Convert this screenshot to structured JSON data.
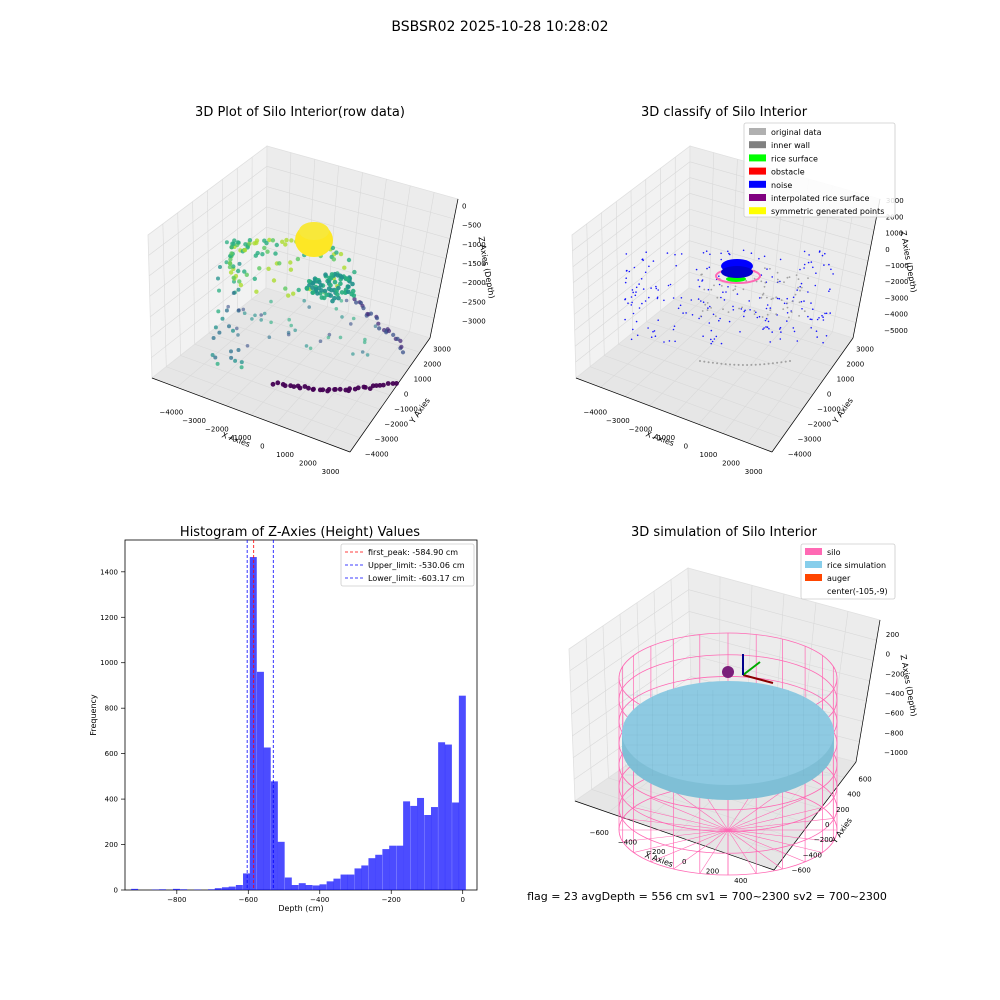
{
  "figure": {
    "suptitle": "BSBSR02 2025-10-28 10:28:02",
    "footer": "flag = 23  avgDepth = 556 cm  sv1 = 700~2300  sv2 = 700~2300"
  },
  "chart_data": [
    {
      "type": "scatter",
      "projection": "3d",
      "title": "3D Plot of Silo Interior(row data)",
      "xlabel": "X Axies",
      "ylabel": "Y Axies",
      "zlabel": "Z Axies (Depth)",
      "x_ticks": [
        "−4000",
        "−3000",
        "−2000",
        "−1000",
        "0",
        "1000",
        "2000",
        "3000"
      ],
      "y_ticks": [
        "−4000",
        "−3000",
        "−2000",
        "−1000",
        "0",
        "1000",
        "2000",
        "3000"
      ],
      "z_ticks": [
        "−3000",
        "−2500",
        "−2000",
        "−1500",
        "−1000",
        "−500",
        "0"
      ],
      "colormap": "viridis"
    },
    {
      "type": "scatter",
      "projection": "3d",
      "title": "3D classify of Silo Interior",
      "xlabel": "X Axies",
      "ylabel": "Y Axies",
      "zlabel": "Z Axies (Depth)",
      "x_ticks": [
        "−4000",
        "−3000",
        "−2000",
        "−1000",
        "0",
        "1000",
        "2000",
        "3000"
      ],
      "y_ticks": [
        "−4000",
        "−3000",
        "−2000",
        "−1000",
        "0",
        "1000",
        "2000",
        "3000"
      ],
      "z_ticks": [
        "−5000",
        "−4000",
        "−3000",
        "−2000",
        "−1000",
        "0",
        "1000",
        "2000",
        "3000"
      ],
      "legend": [
        {
          "label": "original data",
          "color": "#b0b0b0"
        },
        {
          "label": "inner wall",
          "color": "#808080"
        },
        {
          "label": "rice surface",
          "color": "#00ff00"
        },
        {
          "label": "obstacle",
          "color": "#ff0000"
        },
        {
          "label": "noise",
          "color": "#0000ff"
        },
        {
          "label": "interpolated rice surface",
          "color": "#800080"
        },
        {
          "label": "symmetric generated points",
          "color": "#ffff00"
        }
      ],
      "legend_position": "top-right"
    },
    {
      "type": "bar",
      "subtype": "histogram",
      "title": "Histogram of Z-Axies (Height) Values",
      "xlabel": "Depth (cm)",
      "ylabel": "Frequency",
      "xlim": [
        -945,
        40
      ],
      "ylim": [
        0,
        1540
      ],
      "x_ticks": [
        -800,
        -600,
        -400,
        -200,
        0
      ],
      "x_tick_labels": [
        "−800",
        "−600",
        "−400",
        "−200",
        "0"
      ],
      "y_ticks": [
        0,
        200,
        400,
        600,
        800,
        1000,
        1200,
        1400
      ],
      "bar_color": "#0000ff",
      "bar_alpha": 0.7,
      "bin_width": 19.5,
      "bins": [
        {
          "x": -918,
          "v": 5
        },
        {
          "x": -860,
          "v": 2
        },
        {
          "x": -840,
          "v": 3
        },
        {
          "x": -801,
          "v": 5
        },
        {
          "x": -781,
          "v": 3
        },
        {
          "x": -742,
          "v": 2
        },
        {
          "x": -703,
          "v": 3
        },
        {
          "x": -684,
          "v": 8
        },
        {
          "x": -664,
          "v": 12
        },
        {
          "x": -645,
          "v": 15
        },
        {
          "x": -625,
          "v": 22
        },
        {
          "x": -605,
          "v": 73
        },
        {
          "x": -586,
          "v": 1465
        },
        {
          "x": -566,
          "v": 960
        },
        {
          "x": -547,
          "v": 627
        },
        {
          "x": -527,
          "v": 478
        },
        {
          "x": -508,
          "v": 212
        },
        {
          "x": -488,
          "v": 55
        },
        {
          "x": -469,
          "v": 22
        },
        {
          "x": -449,
          "v": 30
        },
        {
          "x": -430,
          "v": 22
        },
        {
          "x": -410,
          "v": 20
        },
        {
          "x": -391,
          "v": 25
        },
        {
          "x": -371,
          "v": 38
        },
        {
          "x": -352,
          "v": 50
        },
        {
          "x": -332,
          "v": 68
        },
        {
          "x": -313,
          "v": 68
        },
        {
          "x": -293,
          "v": 95
        },
        {
          "x": -274,
          "v": 108
        },
        {
          "x": -254,
          "v": 140
        },
        {
          "x": -235,
          "v": 155
        },
        {
          "x": -215,
          "v": 180
        },
        {
          "x": -196,
          "v": 195
        },
        {
          "x": -176,
          "v": 195
        },
        {
          "x": -157,
          "v": 390
        },
        {
          "x": -137,
          "v": 370
        },
        {
          "x": -118,
          "v": 405
        },
        {
          "x": -98,
          "v": 330
        },
        {
          "x": -79,
          "v": 365
        },
        {
          "x": -59,
          "v": 650
        },
        {
          "x": -40,
          "v": 640
        },
        {
          "x": -20,
          "v": 385
        },
        {
          "x": -1,
          "v": 855
        }
      ],
      "vlines": [
        {
          "label": "first_peak: -584.90 cm",
          "x": -584.9,
          "color": "#ff0000"
        },
        {
          "label": "Upper_limit: -530.06 cm",
          "x": -530.06,
          "color": "#0000ff"
        },
        {
          "label": "Lower_limit: -603.17 cm",
          "x": -603.17,
          "color": "#0000ff"
        }
      ],
      "legend_position": "top-right"
    },
    {
      "type": "surface",
      "projection": "3d",
      "title": "3D simulation of Silo Interior",
      "xlabel": "X Axies",
      "ylabel": "Y Axies",
      "zlabel": "Z Axies (Depth)",
      "x_ticks": [
        "−600",
        "−400",
        "−200",
        "0",
        "200",
        "400"
      ],
      "y_ticks": [
        "−600",
        "−400",
        "−200",
        "0",
        "200",
        "400",
        "600"
      ],
      "z_ticks": [
        "−1000",
        "−800",
        "−600",
        "−400",
        "−200",
        "0",
        "200"
      ],
      "legend": [
        {
          "label": "silo",
          "color": "#ff69b4"
        },
        {
          "label": "rice simulation",
          "color": "#87ceeb"
        },
        {
          "label": "auger",
          "color": "#ff4500"
        },
        {
          "label": "center(-105,-9)",
          "color": ""
        }
      ],
      "legend_position": "top-right"
    }
  ]
}
